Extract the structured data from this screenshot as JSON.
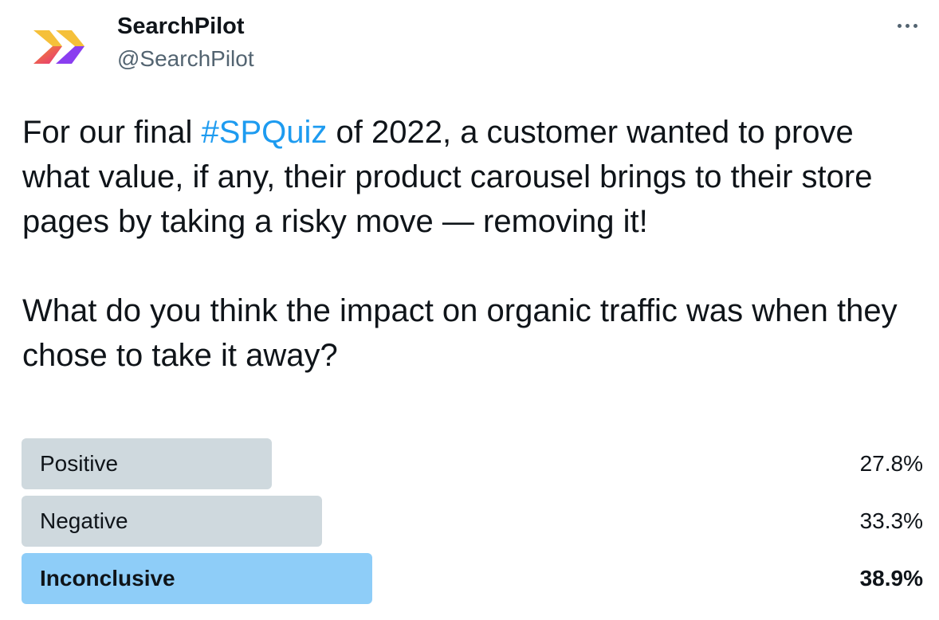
{
  "author": {
    "name": "SearchPilot",
    "handle": "@SearchPilot",
    "avatar_icon": "searchpilot-chevrons-logo",
    "logo_colors": [
      "#f5c03a",
      "#e8307f",
      "#8a3ef0"
    ]
  },
  "more_icon": "ellipsis-icon",
  "tweet": {
    "text_before_hashtag": "For our final ",
    "hashtag": "#SPQuiz",
    "text_after_hashtag": " of 2022, a customer wanted to prove what value, if any, their product carousel brings to their store pages by taking a risky move — removing it!",
    "question": "What do you think the impact on organic traffic was when they chose to take it away?"
  },
  "colors": {
    "hashtag": "#1d9bf0",
    "bar_default": "#cfd9de",
    "bar_winner": "#8ecdf8"
  },
  "poll": {
    "options": [
      {
        "label": "Positive",
        "percent_text": "27.8%",
        "percent": 27.8,
        "winner": false
      },
      {
        "label": "Negative",
        "percent_text": "33.3%",
        "percent": 33.3,
        "winner": false
      },
      {
        "label": "Inconclusive",
        "percent_text": "38.9%",
        "percent": 38.9,
        "winner": true
      }
    ]
  }
}
